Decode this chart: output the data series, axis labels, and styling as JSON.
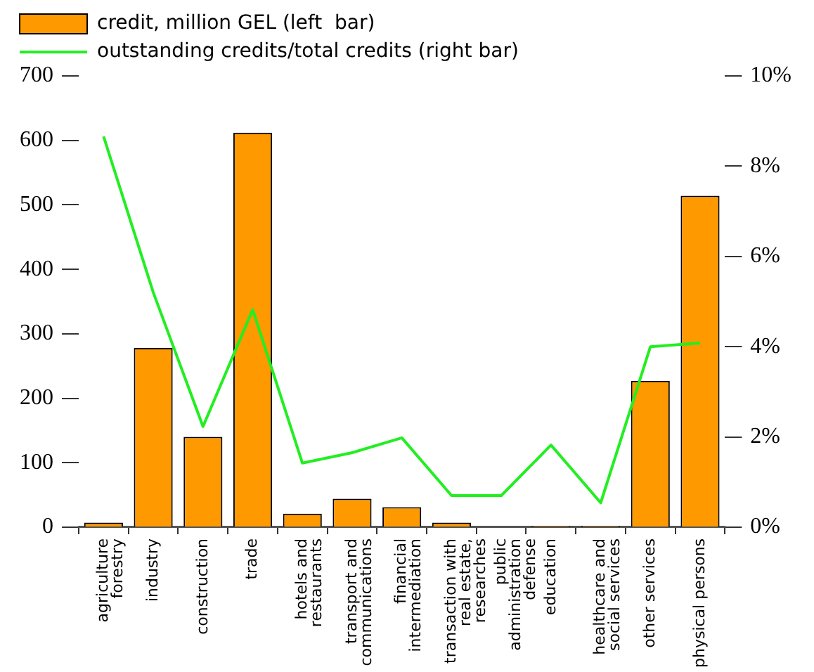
{
  "chart_data": {
    "type": "bar",
    "categories": [
      "agriculture\nforestry",
      "industry",
      "construction",
      "trade",
      "hotels and\nrestaurants",
      "transport and\ncommunications",
      "financial\nintermediation",
      "transaction with\nreal estate,\nresearches",
      "public\nadministration\ndefense",
      "education",
      "healthcare and\nsocial services",
      "other services",
      "physical persons"
    ],
    "series": [
      {
        "name": "credit, million GEL (left  bar)",
        "color": "#ff9900",
        "values": [
          7,
          278,
          140,
          612,
          21,
          44,
          31,
          7,
          0,
          2,
          2,
          227,
          514
        ]
      },
      {
        "name": "outstanding credits/total credits (right bar)",
        "type": "line",
        "axis": "y2",
        "color": "#22ee22",
        "values": [
          8.66,
          5.2,
          2.23,
          4.82,
          1.42,
          1.65,
          1.98,
          0.7,
          0.7,
          1.82,
          0.54,
          4.0,
          4.08
        ]
      }
    ],
    "ylim": [
      0,
      700
    ],
    "yticks": [
      0,
      100,
      200,
      300,
      400,
      500,
      600,
      700
    ],
    "y2lim": [
      0,
      10
    ],
    "y2ticks": [
      {
        "value": 0,
        "label": "0%"
      },
      {
        "value": 2,
        "label": "2%"
      },
      {
        "value": 4,
        "label": "4%"
      },
      {
        "value": 6,
        "label": "6%"
      },
      {
        "value": 8,
        "label": "8%"
      },
      {
        "value": 10,
        "label": "10%"
      }
    ],
    "grid": false,
    "legend": "top left",
    "marker": "none",
    "line_style": "solid"
  }
}
